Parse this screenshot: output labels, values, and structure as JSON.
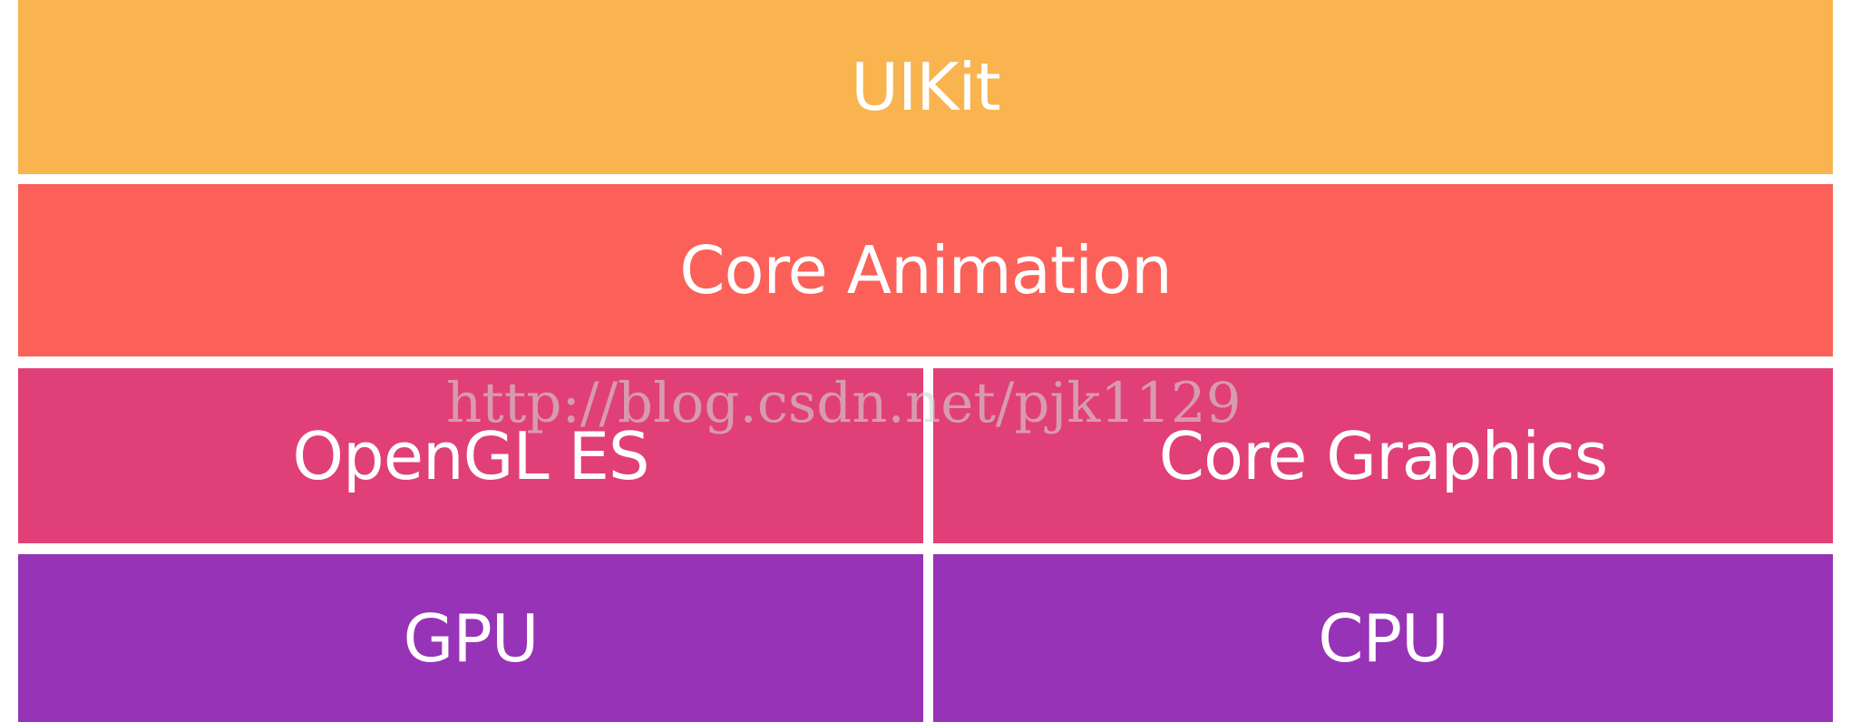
{
  "diagram": {
    "layers": [
      {
        "label": "UIKit"
      },
      {
        "label": "Core Animation"
      },
      {
        "label": "OpenGL ES"
      },
      {
        "label": "Core Graphics"
      },
      {
        "label": "GPU"
      },
      {
        "label": "CPU"
      }
    ],
    "watermark": "http://blog.csdn.net/pjk1129"
  },
  "colors": {
    "uikit": "#f9b34f",
    "core_animation": "#fb6158",
    "graphics_layer": "#e13f77",
    "hardware_layer": "#9733b6",
    "text": "#ffffff"
  }
}
